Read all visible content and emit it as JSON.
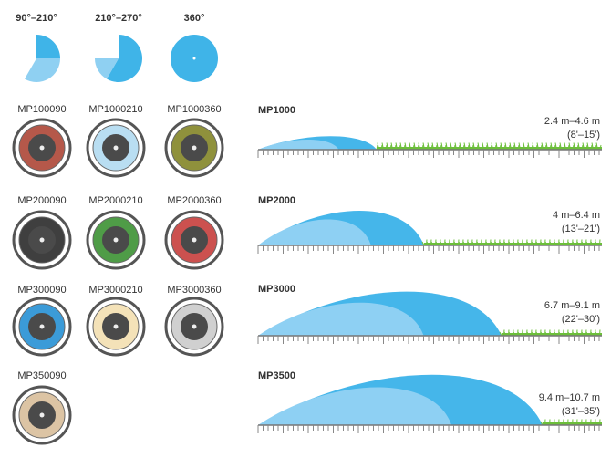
{
  "arcs": [
    {
      "label": "90°–210°"
    },
    {
      "label": "210°–270°"
    },
    {
      "label": "360°"
    }
  ],
  "nozzles": [
    [
      {
        "model": "MP100090",
        "color": "#b5584a"
      },
      {
        "model": "MP1000210",
        "color": "#b9def2"
      },
      {
        "model": "MP1000360",
        "color": "#8f913c"
      }
    ],
    [
      {
        "model": "MP200090",
        "color": "#3f3f3f"
      },
      {
        "model": "MP2000210",
        "color": "#4f9c47"
      },
      {
        "model": "MP2000360",
        "color": "#cc514f"
      }
    ],
    [
      {
        "model": "MP300090",
        "color": "#3b9bd8"
      },
      {
        "model": "MP3000210",
        "color": "#f4e2b8"
      },
      {
        "model": "MP3000360",
        "color": "#d0d0d0"
      }
    ],
    [
      {
        "model": "MP350090",
        "color": "#dcc4a4"
      }
    ]
  ],
  "throws": [
    {
      "name": "MP1000",
      "range": "2.4 m–4.6 m",
      "range_ft": "(8'–15')"
    },
    {
      "name": "MP2000",
      "range": "4 m–6.4 m",
      "range_ft": "(13'–21')"
    },
    {
      "name": "MP3000",
      "range": "6.7 m–9.1 m",
      "range_ft": "(22'–30')"
    },
    {
      "name": "MP3500",
      "range": "9.4 m–10.7 m",
      "range_ft": "(31'–35')"
    }
  ]
}
